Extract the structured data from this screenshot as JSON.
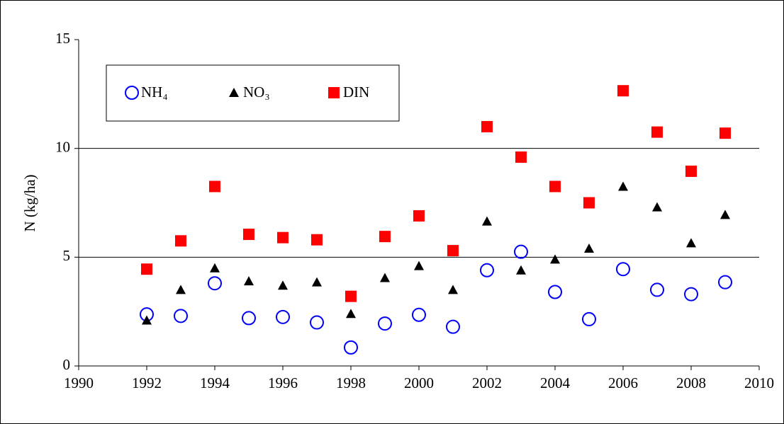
{
  "chart_data": {
    "type": "scatter",
    "ylabel": "N  (kg/ha)",
    "x": [
      1992,
      1993,
      1994,
      1995,
      1996,
      1997,
      1998,
      1999,
      2000,
      2001,
      2002,
      2003,
      2004,
      2005,
      2006,
      2007,
      2008,
      2009
    ],
    "series": [
      {
        "name": "NH₄",
        "color": "#0000ff",
        "marker": "circle",
        "values": [
          2.37,
          2.3,
          3.8,
          2.2,
          2.25,
          2.0,
          0.85,
          1.95,
          2.35,
          1.8,
          4.4,
          5.25,
          3.4,
          2.15,
          4.45,
          3.5,
          3.3,
          3.85
        ]
      },
      {
        "name": "NO₃",
        "color": "#000000",
        "marker": "triangle",
        "values": [
          2.1,
          3.5,
          4.5,
          3.9,
          3.7,
          3.85,
          2.4,
          4.05,
          4.6,
          3.5,
          6.65,
          4.4,
          4.9,
          5.4,
          8.25,
          7.3,
          5.65,
          6.95
        ]
      },
      {
        "name": "DIN",
        "color": "#ff0000",
        "marker": "square",
        "values": [
          4.45,
          5.75,
          8.25,
          6.05,
          5.9,
          5.8,
          3.2,
          5.95,
          6.9,
          5.3,
          11.0,
          9.6,
          8.25,
          7.5,
          12.65,
          10.75,
          8.95,
          10.7
        ]
      }
    ],
    "xlim": [
      1990,
      2010
    ],
    "xticks": [
      1990,
      1992,
      1994,
      1996,
      1998,
      2000,
      2002,
      2004,
      2006,
      2008,
      2010
    ],
    "ylim": [
      0,
      15
    ],
    "yticks": [
      0,
      5,
      10,
      15
    ],
    "grid": true,
    "legend": "top-left"
  }
}
